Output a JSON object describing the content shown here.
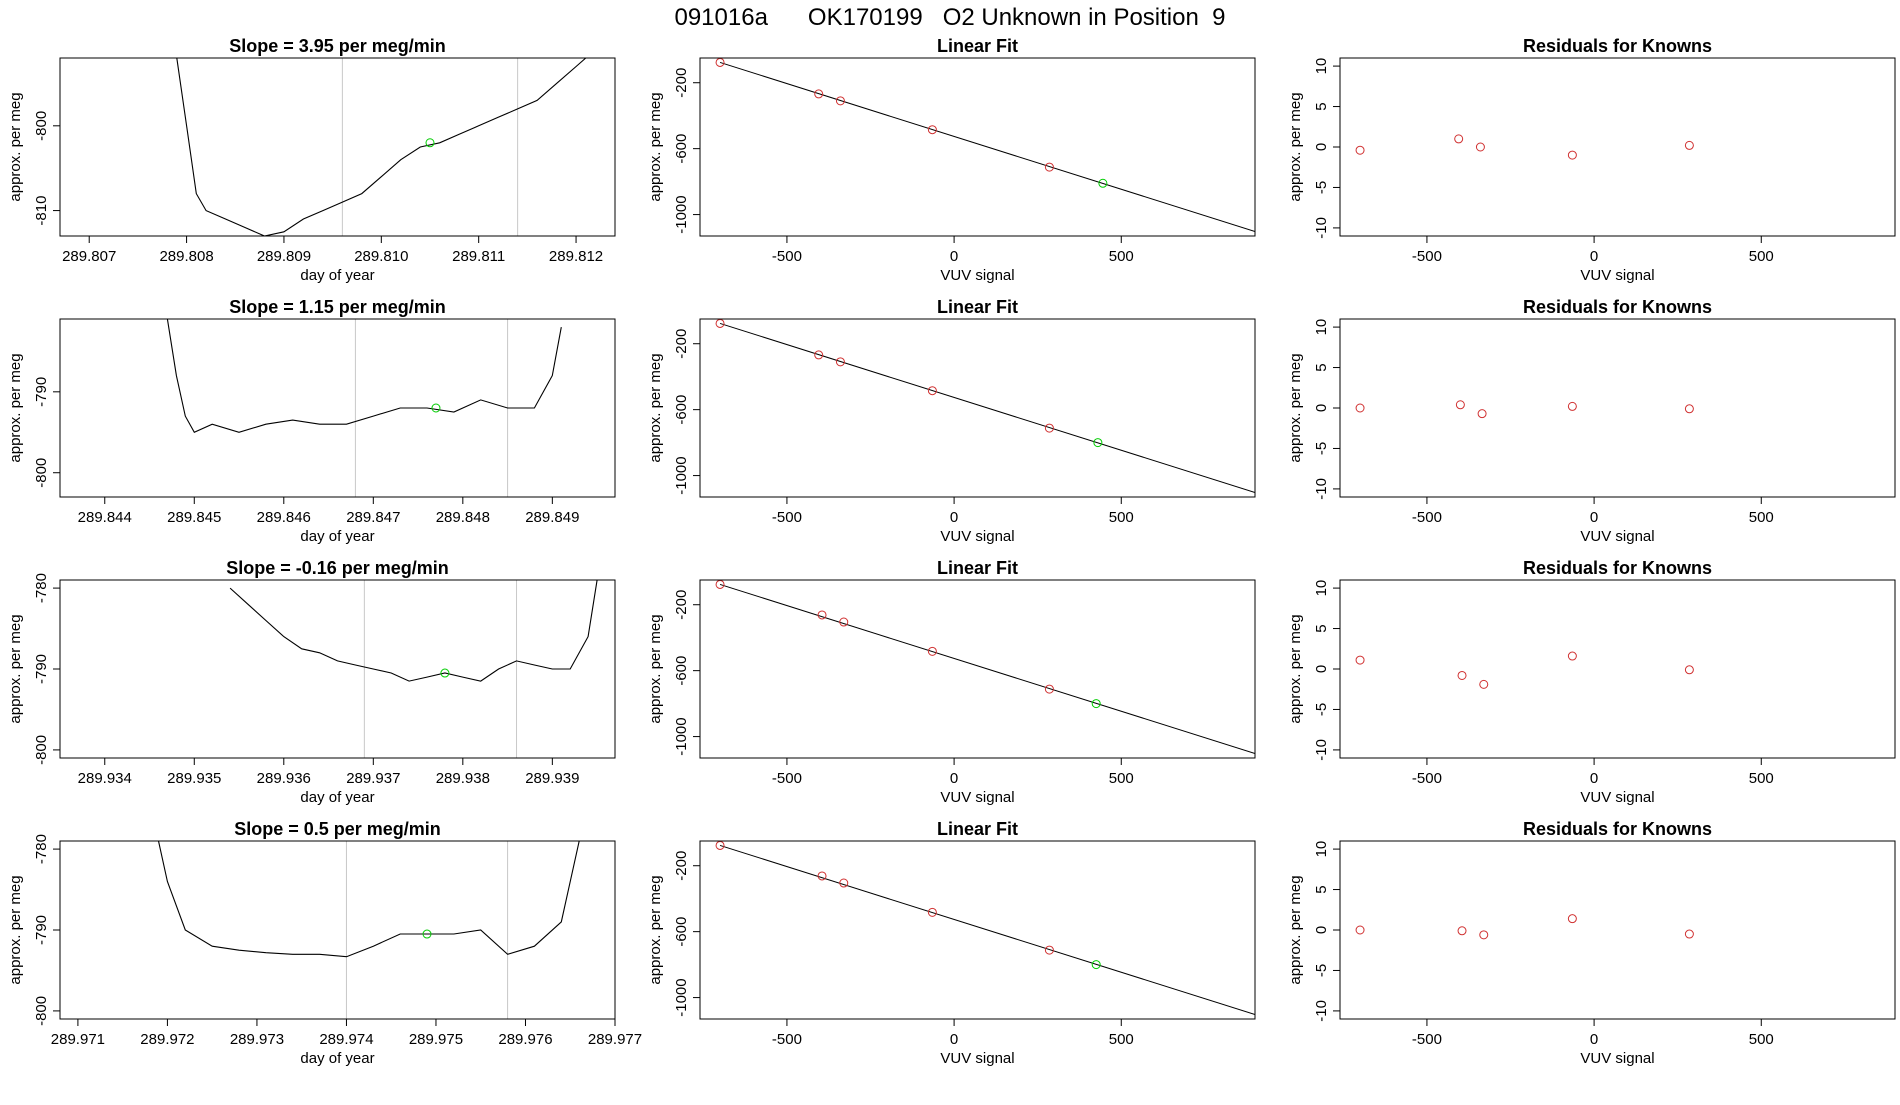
{
  "page_title": "091016a      OK170199   O2 Unknown in Position  9",
  "colors": {
    "known": "#d03030",
    "unknown": "#00cc00",
    "line": "#000000",
    "grid": "#c8c8c8"
  },
  "chart_data": [
    {
      "row": 0,
      "panel": "timeseries",
      "type": "line",
      "title": "Slope =  3.95  per meg/min",
      "xlabel": "day of year",
      "ylabel": "approx. per meg",
      "xlim": [
        289.8067,
        289.8124
      ],
      "ylim": [
        -813,
        -792
      ],
      "xticks": [
        289.807,
        289.808,
        289.809,
        289.81,
        289.811,
        289.812
      ],
      "xtick_labels": [
        "289.807",
        "289.808",
        "289.809",
        "289.810",
        "289.811",
        "289.812"
      ],
      "yticks": [
        -800,
        -810
      ],
      "ytick_labels": [
        "-800",
        "-810"
      ],
      "vlines": [
        289.8096,
        289.8114
      ],
      "marker": {
        "x": 289.8105,
        "y": -802
      },
      "trace_x": [
        289.8079,
        289.808,
        289.8081,
        289.8082,
        289.8084,
        289.8086,
        289.8088,
        289.809,
        289.8092,
        289.8094,
        289.8096,
        289.8098,
        289.81,
        289.8102,
        289.8104,
        289.8106,
        289.8108,
        289.811,
        289.8112,
        289.8114,
        289.8116,
        289.8118,
        289.812,
        289.8121
      ],
      "trace_y": [
        -792,
        -800,
        -808,
        -810,
        -811,
        -812,
        -813,
        -812.5,
        -811,
        -810,
        -809,
        -808,
        -806,
        -804,
        -802.5,
        -802,
        -801,
        -800,
        -799,
        -798,
        -797,
        -795,
        -793,
        -792
      ]
    },
    {
      "row": 0,
      "panel": "fit",
      "type": "scatter",
      "title": "Linear Fit",
      "xlabel": "VUV signal",
      "ylabel": "approx. per meg",
      "xlim": [
        -760,
        900
      ],
      "ylim": [
        -1130,
        -50
      ],
      "xticks": [
        -500,
        0,
        500
      ],
      "xtick_labels": [
        "-500",
        "0",
        "500"
      ],
      "yticks": [
        -200,
        -600,
        -1000
      ],
      "ytick_labels": [
        "-200",
        "-600",
        "-1000"
      ],
      "fit_line": {
        "x": [
          -700,
          900
        ],
        "y": [
          -77,
          -1103
        ]
      },
      "known_x": [
        -700,
        -405,
        -340,
        -65,
        285
      ],
      "known_y": [
        -77,
        -268,
        -310,
        -485,
        -712
      ],
      "unknown_x": [
        445
      ],
      "unknown_y": [
        -810
      ]
    },
    {
      "row": 0,
      "panel": "residuals",
      "type": "scatter",
      "title": "Residuals for Knowns",
      "xlabel": "VUV signal",
      "ylabel": "approx. per meg",
      "xlim": [
        -760,
        900
      ],
      "ylim": [
        -11,
        11
      ],
      "xticks": [
        -500,
        0,
        500
      ],
      "xtick_labels": [
        "-500",
        "0",
        "500"
      ],
      "yticks": [
        10,
        5,
        0,
        -5,
        -10
      ],
      "ytick_labels": [
        "10",
        "5",
        "0",
        "-5",
        "-10"
      ],
      "known_x": [
        -700,
        -405,
        -340,
        -65,
        285
      ],
      "known_y": [
        -0.4,
        1.0,
        0.0,
        -1.0,
        0.2
      ]
    },
    {
      "row": 1,
      "panel": "timeseries",
      "type": "line",
      "title": "Slope =  1.15  per meg/min",
      "xlabel": "day of year",
      "ylabel": "approx. per meg",
      "xlim": [
        289.8435,
        289.8497
      ],
      "ylim": [
        -803,
        -781
      ],
      "xticks": [
        289.844,
        289.845,
        289.846,
        289.847,
        289.848,
        289.849
      ],
      "xtick_labels": [
        "289.844",
        "289.845",
        "289.846",
        "289.847",
        "289.848",
        "289.849"
      ],
      "yticks": [
        -790,
        -800
      ],
      "ytick_labels": [
        "-790",
        "-800"
      ],
      "vlines": [
        289.8468,
        289.8485
      ],
      "marker": {
        "x": 289.8477,
        "y": -792
      },
      "trace_x": [
        289.8447,
        289.8448,
        289.8449,
        289.845,
        289.8452,
        289.8455,
        289.8458,
        289.8461,
        289.8464,
        289.8467,
        289.847,
        289.8473,
        289.8476,
        289.8479,
        289.8482,
        289.8485,
        289.8488,
        289.849,
        289.8491
      ],
      "trace_y": [
        -781,
        -788,
        -793,
        -795,
        -794,
        -795,
        -794,
        -793.5,
        -794,
        -794,
        -793,
        -792,
        -792,
        -792.5,
        -791,
        -792,
        -792,
        -788,
        -782
      ]
    },
    {
      "row": 1,
      "panel": "fit",
      "type": "scatter",
      "title": "Linear Fit",
      "xlabel": "VUV signal",
      "ylabel": "approx. per meg",
      "xlim": [
        -760,
        900
      ],
      "ylim": [
        -1130,
        -50
      ],
      "xticks": [
        -500,
        0,
        500
      ],
      "xtick_labels": [
        "-500",
        "0",
        "500"
      ],
      "yticks": [
        -200,
        -600,
        -1000
      ],
      "ytick_labels": [
        "-200",
        "-600",
        "-1000"
      ],
      "fit_line": {
        "x": [
          -700,
          900
        ],
        "y": [
          -77,
          -1103
        ]
      },
      "known_x": [
        -700,
        -405,
        -340,
        -65,
        285
      ],
      "known_y": [
        -77,
        -268,
        -310,
        -485,
        -712
      ],
      "unknown_x": [
        430
      ],
      "unknown_y": [
        -800
      ]
    },
    {
      "row": 1,
      "panel": "residuals",
      "type": "scatter",
      "title": "Residuals for Knowns",
      "xlabel": "VUV signal",
      "ylabel": "approx. per meg",
      "xlim": [
        -760,
        900
      ],
      "ylim": [
        -11,
        11
      ],
      "xticks": [
        -500,
        0,
        500
      ],
      "xtick_labels": [
        "-500",
        "0",
        "500"
      ],
      "yticks": [
        10,
        5,
        0,
        -5,
        -10
      ],
      "ytick_labels": [
        "10",
        "5",
        "0",
        "-5",
        "-10"
      ],
      "known_x": [
        -700,
        -400,
        -335,
        -65,
        285
      ],
      "known_y": [
        0.0,
        0.4,
        -0.7,
        0.2,
        -0.1
      ]
    },
    {
      "row": 2,
      "panel": "timeseries",
      "type": "line",
      "title": "Slope =  -0.16  per meg/min",
      "xlabel": "day of year",
      "ylabel": "approx. per meg",
      "xlim": [
        289.9335,
        289.9397
      ],
      "ylim": [
        -801,
        -779
      ],
      "xticks": [
        289.934,
        289.935,
        289.936,
        289.937,
        289.938,
        289.939
      ],
      "xtick_labels": [
        "289.934",
        "289.935",
        "289.936",
        "289.937",
        "289.938",
        "289.939"
      ],
      "yticks": [
        -780,
        -790,
        -800
      ],
      "ytick_labels": [
        "-780",
        "-790",
        "-800"
      ],
      "vlines": [
        289.9369,
        289.9386
      ],
      "marker": {
        "x": 289.9378,
        "y": -790.5
      },
      "trace_x": [
        289.9354,
        289.9356,
        289.9358,
        289.936,
        289.9362,
        289.9364,
        289.9366,
        289.9368,
        289.937,
        289.9372,
        289.9374,
        289.9376,
        289.9378,
        289.938,
        289.9382,
        289.9384,
        289.9386,
        289.9388,
        289.939,
        289.9392,
        289.9394,
        289.9395
      ],
      "trace_y": [
        -780,
        -782,
        -784,
        -786,
        -787.5,
        -788,
        -789,
        -789.5,
        -790,
        -790.5,
        -791.5,
        -791,
        -790.5,
        -791,
        -791.5,
        -790,
        -789,
        -789.5,
        -790,
        -790,
        -786,
        -779
      ]
    },
    {
      "row": 2,
      "panel": "fit",
      "type": "scatter",
      "title": "Linear Fit",
      "xlabel": "VUV signal",
      "ylabel": "approx. per meg",
      "xlim": [
        -760,
        900
      ],
      "ylim": [
        -1130,
        -50
      ],
      "xticks": [
        -500,
        0,
        500
      ],
      "xtick_labels": [
        "-500",
        "0",
        "500"
      ],
      "yticks": [
        -200,
        -600,
        -1000
      ],
      "ytick_labels": [
        "-200",
        "-600",
        "-1000"
      ],
      "fit_line": {
        "x": [
          -700,
          900
        ],
        "y": [
          -77,
          -1103
        ]
      },
      "known_x": [
        -700,
        -395,
        -330,
        -65,
        285
      ],
      "known_y": [
        -77,
        -262,
        -305,
        -483,
        -712
      ],
      "unknown_x": [
        425
      ],
      "unknown_y": [
        -800
      ]
    },
    {
      "row": 2,
      "panel": "residuals",
      "type": "scatter",
      "title": "Residuals for Knowns",
      "xlabel": "VUV signal",
      "ylabel": "approx. per meg",
      "xlim": [
        -760,
        900
      ],
      "ylim": [
        -11,
        11
      ],
      "xticks": [
        -500,
        0,
        500
      ],
      "xtick_labels": [
        "-500",
        "0",
        "500"
      ],
      "yticks": [
        10,
        5,
        0,
        -5,
        -10
      ],
      "ytick_labels": [
        "10",
        "5",
        "0",
        "-5",
        "-10"
      ],
      "known_x": [
        -700,
        -395,
        -330,
        -65,
        285
      ],
      "known_y": [
        1.1,
        -0.8,
        -1.9,
        1.6,
        -0.1
      ]
    },
    {
      "row": 3,
      "panel": "timeseries",
      "type": "line",
      "title": "Slope =  0.5  per meg/min",
      "xlabel": "day of year",
      "ylabel": "approx. per meg",
      "xlim": [
        289.9708,
        289.977
      ],
      "ylim": [
        -801,
        -779
      ],
      "xticks": [
        289.971,
        289.972,
        289.973,
        289.974,
        289.975,
        289.976,
        289.977
      ],
      "xtick_labels": [
        "289.971",
        "289.972",
        "289.973",
        "289.974",
        "289.975",
        "289.976",
        "289.977"
      ],
      "yticks": [
        -780,
        -790,
        -800
      ],
      "ytick_labels": [
        "-780",
        "-790",
        "-800"
      ],
      "vlines": [
        289.974,
        289.9758
      ],
      "marker": {
        "x": 289.9749,
        "y": -790.5
      },
      "trace_x": [
        289.9719,
        289.972,
        289.9722,
        289.9725,
        289.9728,
        289.9731,
        289.9734,
        289.9737,
        289.974,
        289.9743,
        289.9746,
        289.9749,
        289.9752,
        289.9755,
        289.9758,
        289.9761,
        289.9764,
        289.9766
      ],
      "trace_y": [
        -779,
        -784,
        -790,
        -792,
        -792.5,
        -792.8,
        -793,
        -793,
        -793.3,
        -792,
        -790.5,
        -790.5,
        -790.5,
        -790,
        -793,
        -792,
        -789,
        -779
      ]
    },
    {
      "row": 3,
      "panel": "fit",
      "type": "scatter",
      "title": "Linear Fit",
      "xlabel": "VUV signal",
      "ylabel": "approx. per meg",
      "xlim": [
        -760,
        900
      ],
      "ylim": [
        -1130,
        -50
      ],
      "xticks": [
        -500,
        0,
        500
      ],
      "xtick_labels": [
        "-500",
        "0",
        "500"
      ],
      "yticks": [
        -200,
        -600,
        -1000
      ],
      "ytick_labels": [
        "-200",
        "-600",
        "-1000"
      ],
      "fit_line": {
        "x": [
          -700,
          900
        ],
        "y": [
          -77,
          -1103
        ]
      },
      "known_x": [
        -700,
        -395,
        -330,
        -65,
        285
      ],
      "known_y": [
        -77,
        -262,
        -305,
        -483,
        -712
      ],
      "unknown_x": [
        425
      ],
      "unknown_y": [
        -800
      ]
    },
    {
      "row": 3,
      "panel": "residuals",
      "type": "scatter",
      "title": "Residuals for Knowns",
      "xlabel": "VUV signal",
      "ylabel": "approx. per meg",
      "xlim": [
        -760,
        900
      ],
      "ylim": [
        -11,
        11
      ],
      "xticks": [
        -500,
        0,
        500
      ],
      "xtick_labels": [
        "-500",
        "0",
        "500"
      ],
      "yticks": [
        10,
        5,
        0,
        -5,
        -10
      ],
      "ytick_labels": [
        "10",
        "5",
        "0",
        "-5",
        "-10"
      ],
      "known_x": [
        -700,
        -395,
        -330,
        -65,
        285
      ],
      "known_y": [
        0.0,
        -0.1,
        -0.6,
        1.4,
        -0.5
      ]
    }
  ]
}
